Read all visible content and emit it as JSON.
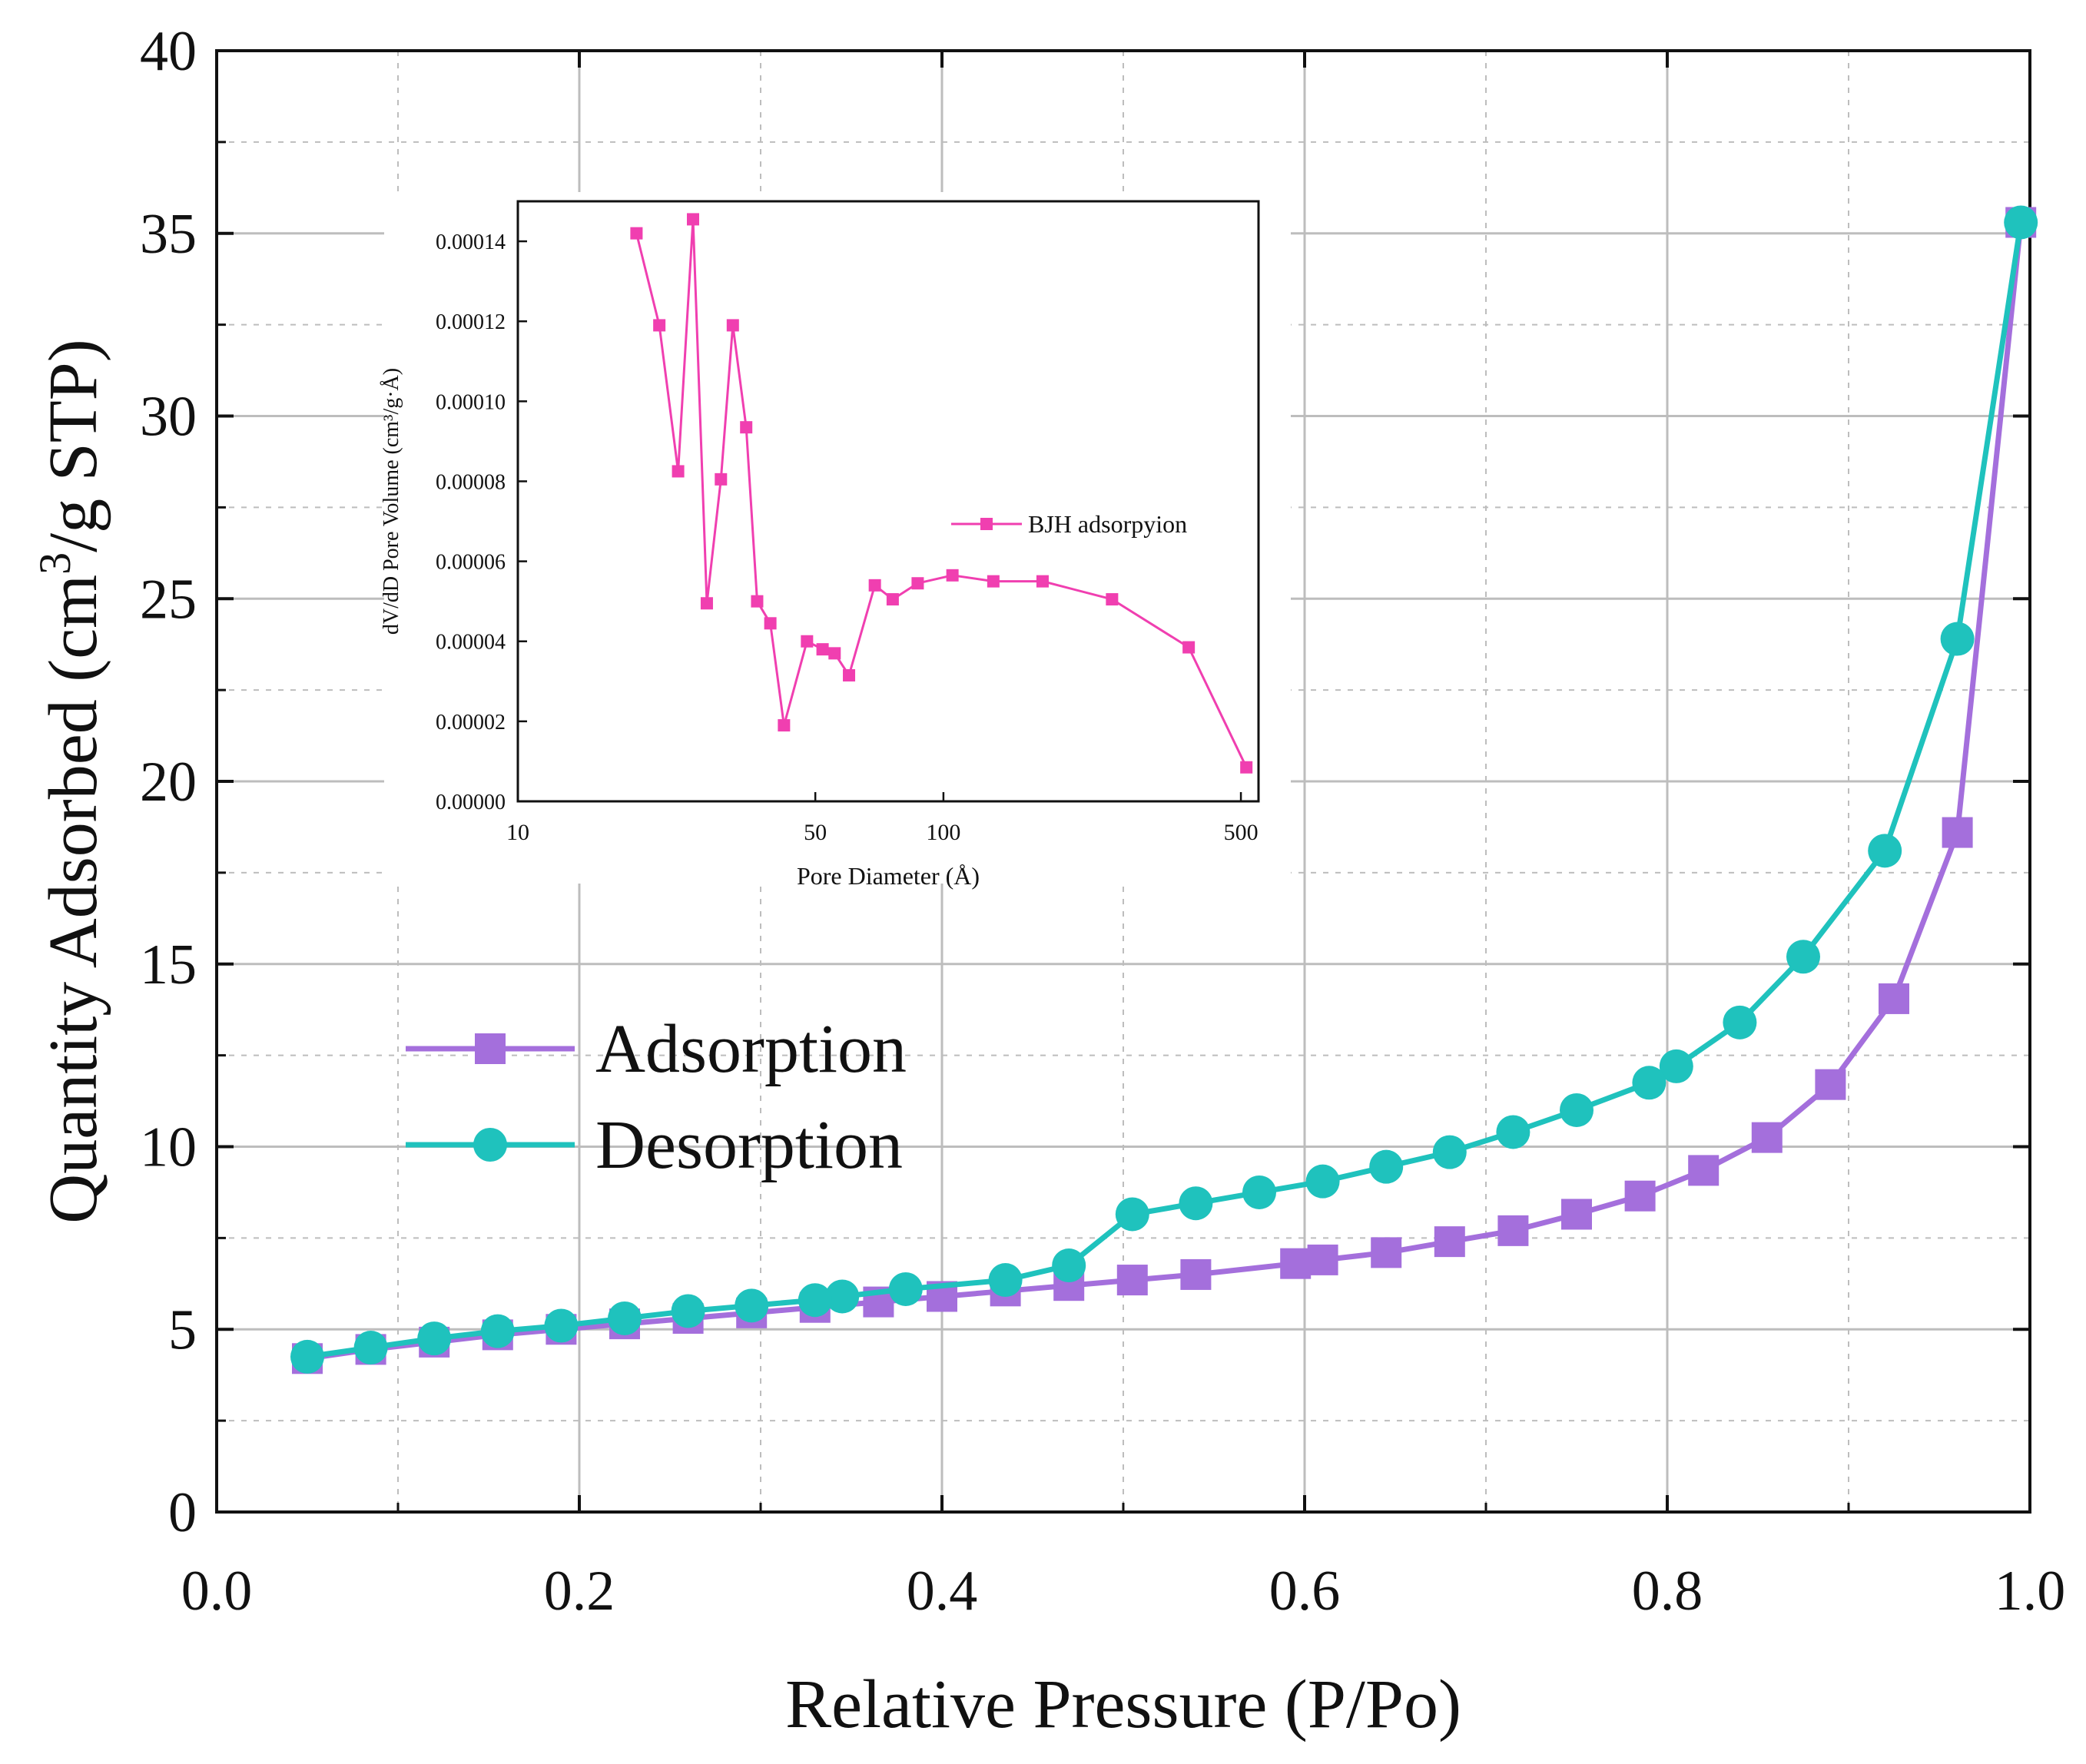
{
  "colors": {
    "adsorption": "#a46fdc",
    "desorption": "#1fc2bd",
    "bjh": "#f03fb0",
    "axis": "#111111",
    "grid": "#bdbdbd"
  },
  "chart_data": [
    {
      "id": "main",
      "type": "line",
      "title": "",
      "xlabel": "Relative Pressure (P/Po)",
      "ylabel_parts": [
        "Quantity Adsorbed (cm",
        "3",
        "/g STP)"
      ],
      "xlim": [
        0.0,
        1.0
      ],
      "ylim": [
        0,
        40
      ],
      "xticks": [
        "0.0",
        "0.2",
        "0.4",
        "0.6",
        "0.8",
        "1.0"
      ],
      "yticks": [
        "0",
        "5",
        "10",
        "15",
        "20",
        "25",
        "30",
        "35",
        "40"
      ],
      "grid": true,
      "legend_position": "center-left",
      "series": [
        {
          "name": "Adsorption",
          "marker": "square",
          "x": [
            0.05,
            0.085,
            0.12,
            0.155,
            0.19,
            0.225,
            0.26,
            0.295,
            0.33,
            0.365,
            0.4,
            0.435,
            0.47,
            0.505,
            0.54,
            0.595,
            0.61,
            0.645,
            0.68,
            0.715,
            0.75,
            0.785,
            0.82,
            0.855,
            0.89,
            0.925,
            0.96,
            0.995
          ],
          "y": [
            4.2,
            4.45,
            4.65,
            4.85,
            5.0,
            5.15,
            5.3,
            5.45,
            5.6,
            5.75,
            5.9,
            6.05,
            6.2,
            6.35,
            6.5,
            6.8,
            6.9,
            7.1,
            7.4,
            7.7,
            8.15,
            8.65,
            9.35,
            10.25,
            11.7,
            14.05,
            18.6,
            35.3
          ]
        },
        {
          "name": "Desorption",
          "marker": "circle",
          "x": [
            0.995,
            0.96,
            0.92,
            0.875,
            0.84,
            0.805,
            0.79,
            0.75,
            0.715,
            0.68,
            0.645,
            0.61,
            0.575,
            0.54,
            0.505,
            0.47,
            0.435,
            0.38,
            0.345,
            0.33,
            0.295,
            0.26,
            0.225,
            0.19,
            0.155,
            0.12,
            0.085,
            0.05
          ],
          "y": [
            35.3,
            23.9,
            18.1,
            15.2,
            13.4,
            12.2,
            11.75,
            11.0,
            10.4,
            9.85,
            9.45,
            9.05,
            8.75,
            8.45,
            8.15,
            6.75,
            6.35,
            6.1,
            5.9,
            5.8,
            5.65,
            5.5,
            5.3,
            5.1,
            4.95,
            4.75,
            4.5,
            4.25
          ]
        }
      ]
    },
    {
      "id": "inset",
      "type": "line",
      "title": "",
      "xlabel": "Pore Diameter (Å)",
      "ylabel": "dV/dD Pore Volume (cm³/g·Å)",
      "xscale": "log",
      "xlim": [
        10,
        550
      ],
      "ylim": [
        0,
        0.00015
      ],
      "xticks": [
        "10",
        "50",
        "100",
        "500"
      ],
      "xtick_values": [
        10,
        50,
        100,
        500
      ],
      "yticks": [
        "0.00000",
        "0.00002",
        "0.00004",
        "0.00006",
        "0.00008",
        "0.00010",
        "0.00012",
        "0.00014"
      ],
      "ytick_values": [
        0,
        2e-05,
        4e-05,
        6e-05,
        8e-05,
        0.0001,
        0.00012,
        0.00014
      ],
      "grid": false,
      "legend_position": "center-right",
      "series": [
        {
          "name": "BJH adsorpyion",
          "marker": "square",
          "x": [
            19.0,
            21.5,
            23.8,
            25.8,
            27.8,
            30.0,
            32.0,
            34.4,
            36.5,
            39.2,
            42.2,
            47.8,
            52.0,
            55.5,
            60.0,
            69.0,
            76.0,
            87.0,
            105.0,
            131.0,
            171.0,
            249.0,
            377.0,
            515.0
          ],
          "y": [
            0.000142,
            0.000119,
            8.25e-05,
            0.0001455,
            4.95e-05,
            8.05e-05,
            0.000119,
            9.35e-05,
            5e-05,
            4.45e-05,
            1.9e-05,
            4e-05,
            3.8e-05,
            3.7e-05,
            3.15e-05,
            5.4e-05,
            5.05e-05,
            5.45e-05,
            5.65e-05,
            5.5e-05,
            5.5e-05,
            5.05e-05,
            3.85e-05,
            8.5e-06
          ]
        }
      ]
    }
  ]
}
